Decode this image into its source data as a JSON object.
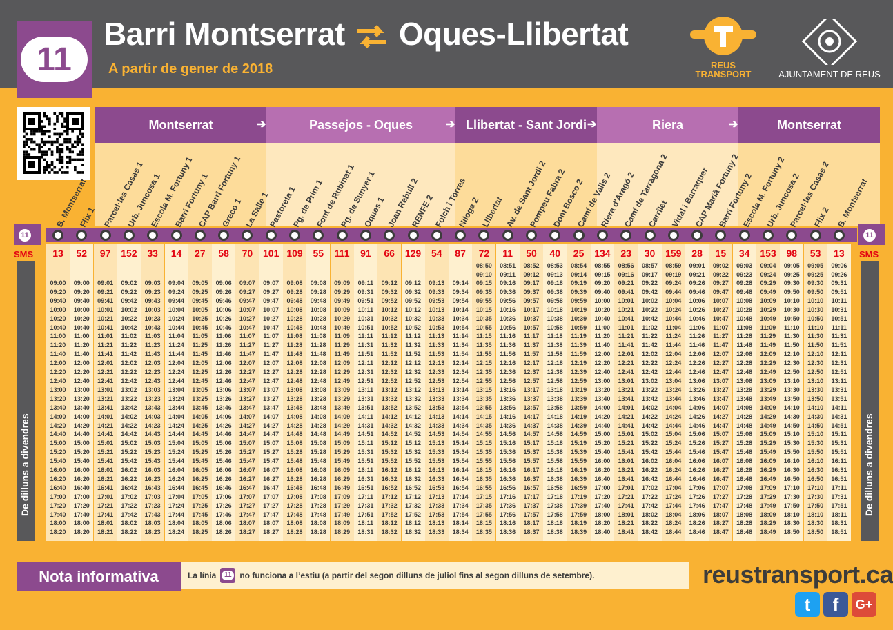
{
  "header": {
    "line_number": "11",
    "title_from": "Barri Montserrat",
    "title_to": "Oques-Llibertat",
    "subtitle": "A partir de gener de 2018",
    "operator": "REUS\nTRANSPORT",
    "council": "AJUNTAMENT DE REUS"
  },
  "colors": {
    "purple": "#8C4A8E",
    "orange": "#F9B233",
    "grey": "#58585A",
    "red": "#E30613"
  },
  "zones": [
    {
      "label": "Montserrat",
      "color": "#8C4A8E"
    },
    {
      "label": "Passejos - Oques",
      "color": "#B76FB1"
    },
    {
      "label": "Llibertat - Sant Jordi",
      "color": "#8C4A8E"
    },
    {
      "label": "Riera",
      "color": "#B76FB1"
    },
    {
      "label": "Montserrat",
      "color": "#8C4A8E"
    }
  ],
  "sms_label": "SMS",
  "day_label": "De dilluns a divendres",
  "stops": [
    {
      "name": "B. Montserrat",
      "sms": "13"
    },
    {
      "name": "Flix 1",
      "sms": "52"
    },
    {
      "name": "Parcel·les Casas 1",
      "sms": "97"
    },
    {
      "name": "Urb. Juncosa 1",
      "sms": "152"
    },
    {
      "name": "Escola M. Fortuny 1",
      "sms": "33"
    },
    {
      "name": "Barri Fortuny 1",
      "sms": "14"
    },
    {
      "name": "CAP Barri Fortuny 1",
      "sms": "27"
    },
    {
      "name": "Greco 1",
      "sms": "58"
    },
    {
      "name": "La Salle 1",
      "sms": "70"
    },
    {
      "name": "Pastoreta 1",
      "sms": "101"
    },
    {
      "name": "Pg. de Prim 1",
      "sms": "109"
    },
    {
      "name": "Font de Rubinat 1",
      "sms": "55"
    },
    {
      "name": "Pg. de Sunyer 1",
      "sms": "111"
    },
    {
      "name": "Oques 1",
      "sms": "91"
    },
    {
      "name": "Joan Rebull 2",
      "sms": "66"
    },
    {
      "name": "RENFE 2",
      "sms": "129"
    },
    {
      "name": "Folch i Torres",
      "sms": "54"
    },
    {
      "name": "Niloga 2",
      "sms": "87"
    },
    {
      "name": "Llibertat",
      "sms": "72"
    },
    {
      "name": "Av. de Sant Jordi 2",
      "sms": "11"
    },
    {
      "name": "Pompeu Fabra 2",
      "sms": "50"
    },
    {
      "name": "Dom Bosco 2",
      "sms": "40"
    },
    {
      "name": "Camí de Valls 2",
      "sms": "25"
    },
    {
      "name": "Riera d'Aragó 2",
      "sms": "134"
    },
    {
      "name": "Camí de Tarragona 2",
      "sms": "23"
    },
    {
      "name": "Carrilet",
      "sms": "30"
    },
    {
      "name": "Vidal i Barraquer",
      "sms": "159"
    },
    {
      "name": "CAP Marià Fortuny 2",
      "sms": "28"
    },
    {
      "name": "Barri Fortuny 2",
      "sms": "15"
    },
    {
      "name": "Escola M. Fortuny 2",
      "sms": "34"
    },
    {
      "name": "Urb. Juncosa 2",
      "sms": "153"
    },
    {
      "name": "Parcel·les Casas 2",
      "sms": "98"
    },
    {
      "name": "Flix 2",
      "sms": "53"
    },
    {
      "name": "B. Montserrat",
      "sms": "13"
    }
  ],
  "stop_offsets": [
    0,
    0,
    1,
    2,
    3,
    4,
    5,
    6,
    7,
    7,
    8,
    8,
    9,
    11,
    12,
    12,
    13,
    14,
    15,
    16,
    17,
    18,
    19,
    20,
    21,
    22,
    24,
    26,
    27,
    28,
    29,
    30,
    30,
    31
  ],
  "pre_minutes_start": 515,
  "pre_minutes_end": 535,
  "main_minutes_start": 540,
  "main_minutes_end": 1100,
  "interval_min": 20,
  "first_pre_col": 18,
  "note": {
    "label": "Nota informativa",
    "text_before": "La línia",
    "badge": "11",
    "text_after": "no funciona a l’estiu (a partir del segon dilluns de juliol fins al segon dilluns de setembre)."
  },
  "website": "reustransport.cat",
  "social": [
    {
      "name": "twitter-icon",
      "glyph": "t",
      "color": "#1DA1F2"
    },
    {
      "name": "facebook-icon",
      "glyph": "f",
      "color": "#3B5998"
    },
    {
      "name": "google-plus-icon",
      "glyph": "G+",
      "color": "#DD4B39"
    }
  ]
}
